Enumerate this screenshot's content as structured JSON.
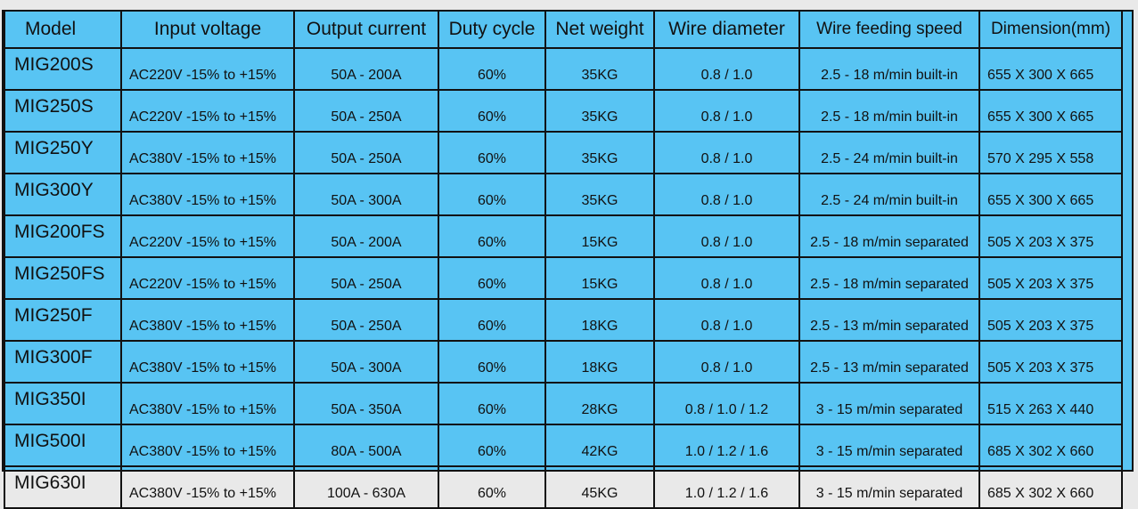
{
  "headers": {
    "model": "Model",
    "input_voltage": "Input voltage",
    "output_current": "Output current",
    "duty_cycle": "Duty cycle",
    "net_weight": "Net weight",
    "wire_diameter": "Wire diameter",
    "wire_feeding_speed": "Wire feeding speed",
    "dimension": "Dimension(mm)"
  },
  "rows": [
    {
      "model": "MIG200S",
      "input_voltage": "AC220V -15% to +15%",
      "output_current": "50A - 200A",
      "duty_cycle": "60%",
      "net_weight": "35KG",
      "wire_diameter": "0.8 / 1.0",
      "wire_feeding_speed": "2.5 - 18 m/min   built-in",
      "dimension": "655 X 300 X 665"
    },
    {
      "model": "MIG250S",
      "input_voltage": "AC220V -15% to +15%",
      "output_current": "50A - 250A",
      "duty_cycle": "60%",
      "net_weight": "35KG",
      "wire_diameter": "0.8 / 1.0",
      "wire_feeding_speed": "2.5 - 18 m/min   built-in",
      "dimension": "655 X 300 X 665"
    },
    {
      "model": "MIG250Y",
      "input_voltage": "AC380V -15% to +15%",
      "output_current": "50A - 250A",
      "duty_cycle": "60%",
      "net_weight": "35KG",
      "wire_diameter": "0.8 / 1.0",
      "wire_feeding_speed": "2.5 - 24 m/min   built-in",
      "dimension": "570 X 295 X 558"
    },
    {
      "model": "MIG300Y",
      "input_voltage": "AC380V -15% to +15%",
      "output_current": "50A - 300A",
      "duty_cycle": "60%",
      "net_weight": "35KG",
      "wire_diameter": "0.8 / 1.0",
      "wire_feeding_speed": "2.5 - 24 m/min   built-in",
      "dimension": "655 X 300 X 665"
    },
    {
      "model": "MIG200FS",
      "input_voltage": "AC220V -15% to +15%",
      "output_current": "50A - 200A",
      "duty_cycle": "60%",
      "net_weight": "15KG",
      "wire_diameter": "0.8 / 1.0",
      "wire_feeding_speed": "2.5 - 18 m/min separated",
      "dimension": "505 X 203 X 375"
    },
    {
      "model": "MIG250FS",
      "input_voltage": "AC220V -15% to +15%",
      "output_current": "50A - 250A",
      "duty_cycle": "60%",
      "net_weight": "15KG",
      "wire_diameter": "0.8 / 1.0",
      "wire_feeding_speed": "2.5 - 18 m/min separated",
      "dimension": "505 X 203 X 375"
    },
    {
      "model": "MIG250F",
      "input_voltage": "AC380V -15% to +15%",
      "output_current": "50A - 250A",
      "duty_cycle": "60%",
      "net_weight": "18KG",
      "wire_diameter": "0.8 / 1.0",
      "wire_feeding_speed": "2.5 - 13 m/min separated",
      "dimension": "505 X 203 X 375"
    },
    {
      "model": "MIG300F",
      "input_voltage": "AC380V -15% to +15%",
      "output_current": "50A - 300A",
      "duty_cycle": "60%",
      "net_weight": "18KG",
      "wire_diameter": "0.8 / 1.0",
      "wire_feeding_speed": "2.5 - 13 m/min separated",
      "dimension": "505 X 203 X 375"
    },
    {
      "model": "MIG350I",
      "input_voltage": "AC380V -15% to +15%",
      "output_current": "50A - 350A",
      "duty_cycle": "60%",
      "net_weight": "28KG",
      "wire_diameter": "0.8 / 1.0 / 1.2",
      "wire_feeding_speed": "3 - 15 m/min separated",
      "dimension": "515 X 263 X 440"
    },
    {
      "model": "MIG500I",
      "input_voltage": "AC380V -15% to +15%",
      "output_current": "80A - 500A",
      "duty_cycle": "60%",
      "net_weight": "42KG",
      "wire_diameter": "1.0 / 1.2 / 1.6",
      "wire_feeding_speed": "3 - 15 m/min separated",
      "dimension": "685 X 302 X 660"
    },
    {
      "model": "MIG630I",
      "input_voltage": "AC380V -15% to +15%",
      "output_current": "100A - 630A",
      "duty_cycle": "60%",
      "net_weight": "45KG",
      "wire_diameter": "1.0 / 1.2 / 1.6",
      "wire_feeding_speed": "3 - 15 m/min separated",
      "dimension": "685 X 302 X 660"
    }
  ],
  "colors": {
    "background": "#58c4f3",
    "grid_lines": "#111111",
    "text": "#111111"
  }
}
